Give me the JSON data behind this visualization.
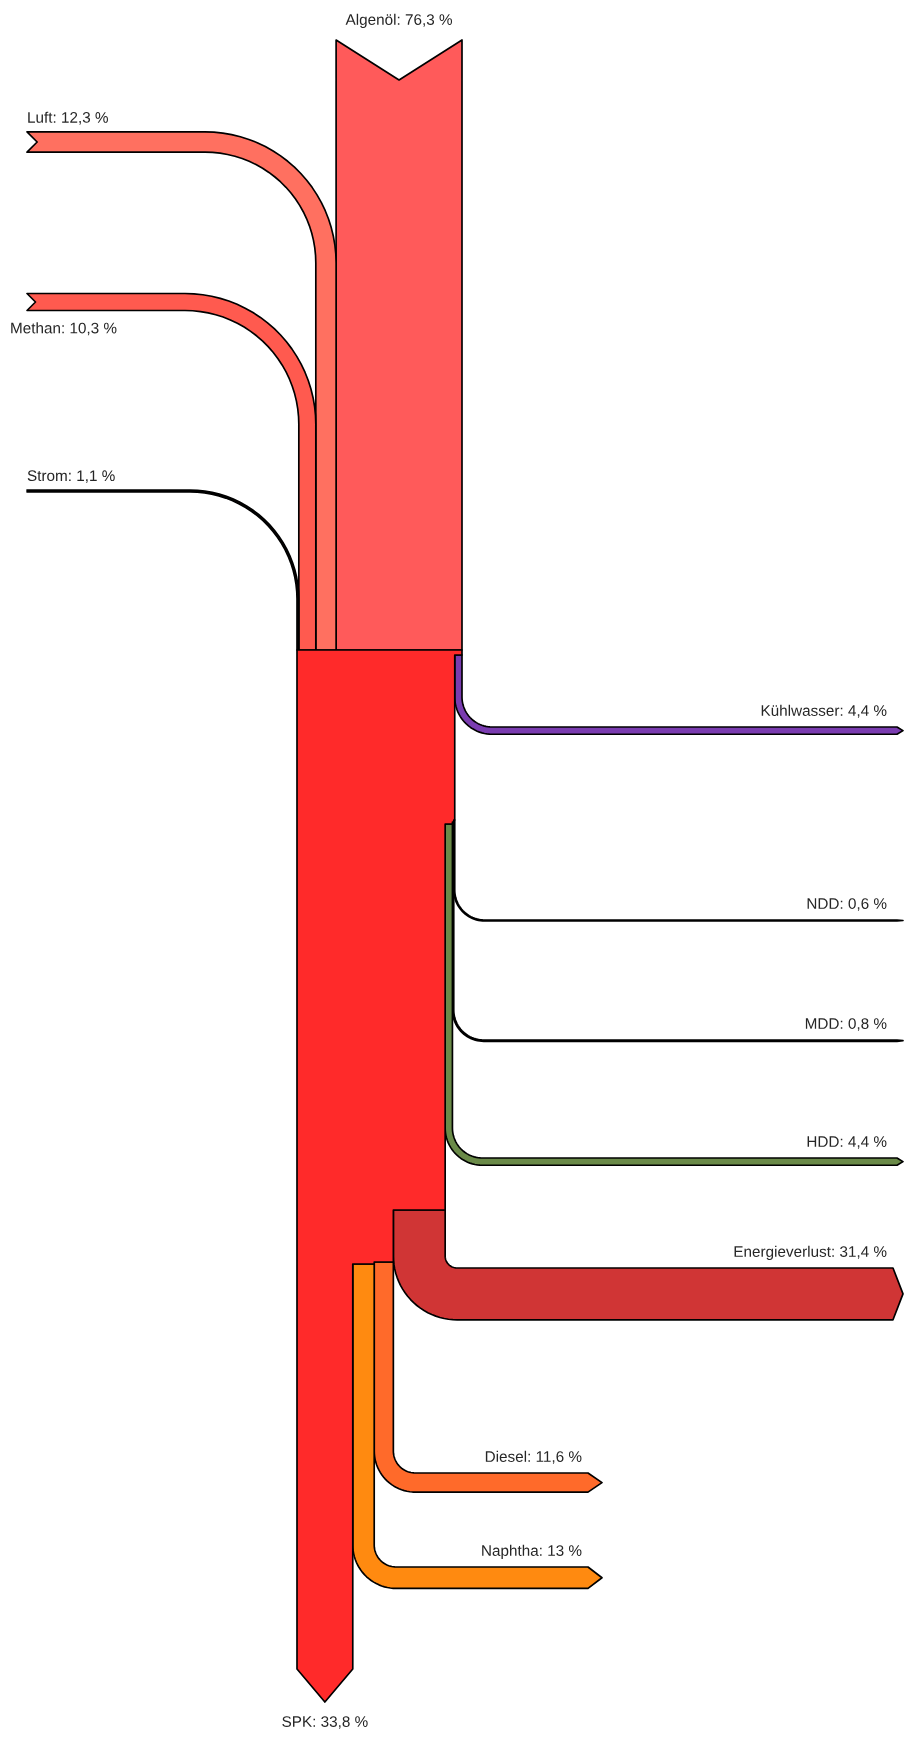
{
  "chart_data": {
    "type": "other",
    "values": [
      76.3,
      12.3,
      10.3,
      1.1,
      4.4,
      0.6,
      0.8,
      4.4,
      31.4,
      11.6,
      13,
      33.8
    ],
    "value_labels": [
      "Algenöl: 76,3 %",
      "Luft: 12,3 %",
      "Methan: 10,3 %",
      "Strom: 1,1 %",
      "Kühlwasser: 4,4 %",
      "NDD: 0,6 %",
      "MDD: 0,8 %",
      "HDD: 4,4 %",
      "Energieverlust: 31,4 %",
      "Diesel: 11,6 %",
      "Naphtha: 13 %",
      "SPK: 33,8 %"
    ],
    "colors": [
      "#ff5a5a",
      "#ff7060",
      "#ff5a4f",
      "#201010",
      "#7a3cb0",
      "#1a1a1a",
      "#1a1a1a",
      "#6a8a48",
      "#d03535",
      "#ff6a2a",
      "#ff8a10",
      "#ff2a2a"
    ]
  }
}
